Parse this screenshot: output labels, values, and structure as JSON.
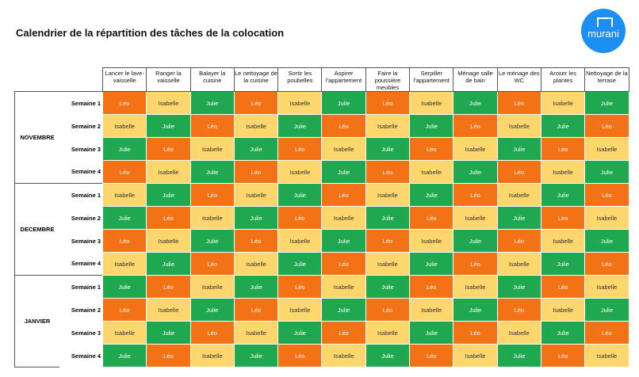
{
  "header": {
    "title": "Calendrier de la répartition des tâches de la colocation",
    "logo": "murani"
  },
  "table": {
    "columns": [
      "Lancer le lave-vaisselle",
      "Ranger la vaisselle",
      "Balayer la cuisine",
      "Le nettoyage de la cuisine",
      "Sortir les poubelles",
      "Aspirer l'appartement",
      "Faire la poussière meubles",
      "Serpiller l'appartement",
      "Ménage salle de bain",
      "Le ménage des WC",
      "Aroser les plantes",
      "Nettoyage de la terrase"
    ],
    "colors": {
      "Léo": "#f47216",
      "Isabelle": "#fdd66e",
      "Julie": "#1fa84f"
    },
    "months": [
      {
        "name": "NOVEMBRE",
        "weeks": [
          {
            "label": "Semaine 1",
            "cells": [
              "Léo",
              "Isabelle",
              "Julie",
              "Léo",
              "Isabelle",
              "Julie",
              "Léo",
              "Isabelle",
              "Julie",
              "Léo",
              "Isabelle",
              "Julie"
            ]
          },
          {
            "label": "Semaine 2",
            "cells": [
              "Isabelle",
              "Julie",
              "Léo",
              "Isabelle",
              "Julie",
              "Léo",
              "Isabelle",
              "Julie",
              "Léo",
              "Isabelle",
              "Julie",
              "Léo"
            ]
          },
          {
            "label": "Semaine 3",
            "cells": [
              "Julie",
              "Léo",
              "Isabelle",
              "Julie",
              "Léo",
              "Isabelle",
              "Julie",
              "Léo",
              "Isabelle",
              "Julie",
              "Léo",
              "Isabelle"
            ]
          },
          {
            "label": "Semaine 4",
            "cells": [
              "Léo",
              "Isabelle",
              "Julie",
              "Léo",
              "Isabelle",
              "Julie",
              "Léo",
              "Isabelle",
              "Julie",
              "Léo",
              "Isabelle",
              "Julie"
            ]
          }
        ]
      },
      {
        "name": "DECEMBRE",
        "weeks": [
          {
            "label": "Semaine 1",
            "cells": [
              "Isabelle",
              "Julie",
              "Léo",
              "Isabelle",
              "Julie",
              "Léo",
              "Isabelle",
              "Julie",
              "Léo",
              "Isabelle",
              "Julie",
              "Léo"
            ]
          },
          {
            "label": "Semaine 2",
            "cells": [
              "Julie",
              "Léo",
              "Isabelle",
              "Julie",
              "Léo",
              "Isabelle",
              "Julie",
              "Léo",
              "Isabelle",
              "Julie",
              "Léo",
              "Isabelle"
            ]
          },
          {
            "label": "Semaine 3",
            "cells": [
              "Léo",
              "Isabelle",
              "Julie",
              "Léo",
              "Isabelle",
              "Julie",
              "Léo",
              "Isabelle",
              "Julie",
              "Léo",
              "Isabelle",
              "Julie"
            ]
          },
          {
            "label": "Semaine 4",
            "cells": [
              "Isabelle",
              "Julie",
              "Léo",
              "Isabelle",
              "Julie",
              "Léo",
              "Isabelle",
              "Julie",
              "Léo",
              "Isabelle",
              "Julie",
              "Léo"
            ]
          }
        ]
      },
      {
        "name": "JANVIER",
        "weeks": [
          {
            "label": "Semaine 1",
            "cells": [
              "Julie",
              "Léo",
              "Isabelle",
              "Julie",
              "Léo",
              "Isabelle",
              "Julie",
              "Léo",
              "Isabelle",
              "Julie",
              "Léo",
              "Isabelle"
            ]
          },
          {
            "label": "Semaine 2",
            "cells": [
              "Léo",
              "Isabelle",
              "Julie",
              "Léo",
              "Isabelle",
              "Julie",
              "Léo",
              "Isabelle",
              "Julie",
              "Léo",
              "Isabelle",
              "Julie"
            ]
          },
          {
            "label": "Semaine 3",
            "cells": [
              "Isabelle",
              "Julie",
              "Léo",
              "Isabelle",
              "Julie",
              "Léo",
              "Isabelle",
              "Julie",
              "Léo",
              "Isabelle",
              "Julie",
              "Léo"
            ]
          },
          {
            "label": "Semaine 4",
            "cells": [
              "Julie",
              "Léo",
              "Isabelle",
              "Julie",
              "Léo",
              "Isabelle",
              "Julie",
              "Léo",
              "Isabelle",
              "Julie",
              "Léo",
              "Isabelle"
            ]
          }
        ]
      }
    ]
  }
}
